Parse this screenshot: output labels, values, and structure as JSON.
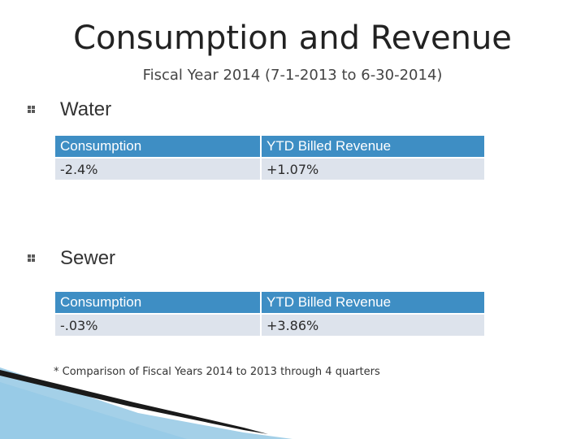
{
  "slide": {
    "title": "Consumption and Revenue",
    "subtitle": "Fiscal Year 2014 (7-1-2013 to 6-30-2014)"
  },
  "water": {
    "heading": "Water",
    "col_consumption": "Consumption",
    "col_revenue": "YTD  Billed Revenue",
    "consumption_value": "-2.4%",
    "revenue_value": "+1.07%"
  },
  "sewer": {
    "heading": "Sewer",
    "col_consumption": "Consumption",
    "col_revenue": "YTD Billed Revenue",
    "consumption_value": "-.03%",
    "revenue_value": "+3.86%"
  },
  "footnote": "* Comparison of Fiscal Years 2014 to 2013 through 4 quarters",
  "colors": {
    "header_fill": "#3e8ec4",
    "cell_fill": "#dde3ec",
    "accent_dark": "#1a1a1a",
    "accent_blue": "#5aa9d6"
  }
}
